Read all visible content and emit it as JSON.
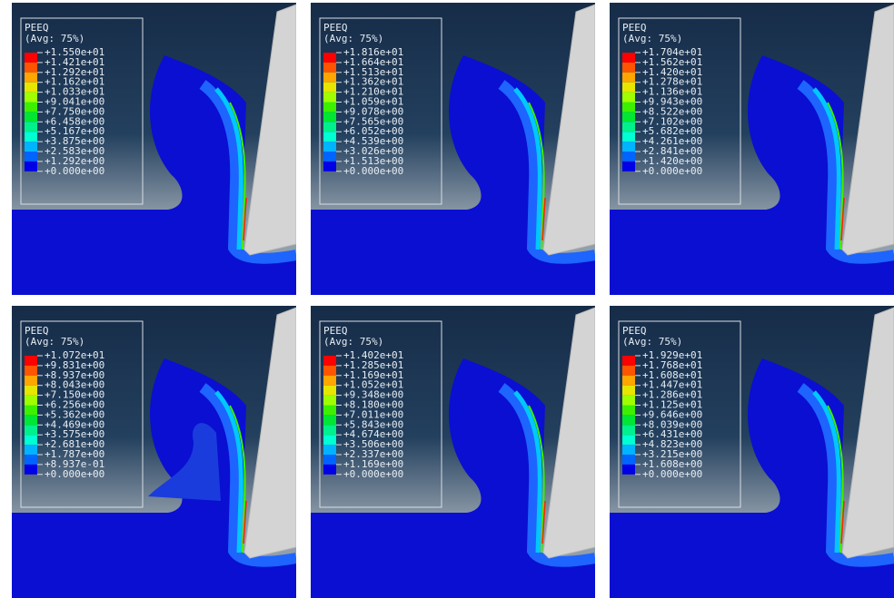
{
  "panels": [
    {
      "title": "PEEQ",
      "average": "(Avg: 75%)",
      "labels": [
        "+1.550e+01",
        "+1.421e+01",
        "+1.292e+01",
        "+1.162e+01",
        "+1.033e+01",
        "+9.041e+00",
        "+7.750e+00",
        "+6.458e+00",
        "+5.167e+00",
        "+3.875e+00",
        "+2.583e+00",
        "+1.292e+00",
        "+0.000e+00"
      ]
    },
    {
      "title": "PEEQ",
      "average": "(Avg: 75%)",
      "labels": [
        "+1.816e+01",
        "+1.664e+01",
        "+1.513e+01",
        "+1.362e+01",
        "+1.210e+01",
        "+1.059e+01",
        "+9.078e+00",
        "+7.565e+00",
        "+6.052e+00",
        "+4.539e+00",
        "+3.026e+00",
        "+1.513e+00",
        "+0.000e+00"
      ]
    },
    {
      "title": "PEEQ",
      "average": "(Avg: 75%)",
      "labels": [
        "+1.704e+01",
        "+1.562e+01",
        "+1.420e+01",
        "+1.278e+01",
        "+1.136e+01",
        "+9.943e+00",
        "+8.522e+00",
        "+7.102e+00",
        "+5.682e+00",
        "+4.261e+00",
        "+2.841e+00",
        "+1.420e+00",
        "+0.000e+00"
      ]
    },
    {
      "title": "PEEQ",
      "average": "(Avg: 75%)",
      "labels": [
        "+1.072e+01",
        "+9.831e+00",
        "+8.937e+00",
        "+8.043e+00",
        "+7.150e+00",
        "+6.256e+00",
        "+5.362e+00",
        "+4.469e+00",
        "+3.575e+00",
        "+2.681e+00",
        "+1.787e+00",
        "+8.937e-01",
        "+0.000e+00"
      ]
    },
    {
      "title": "PEEQ",
      "average": "(Avg: 75%)",
      "labels": [
        "+1.402e+01",
        "+1.285e+01",
        "+1.169e+01",
        "+1.052e+01",
        "+9.348e+00",
        "+8.180e+00",
        "+7.011e+00",
        "+5.843e+00",
        "+4.674e+00",
        "+3.506e+00",
        "+2.337e+00",
        "+1.169e+00",
        "+0.000e+00"
      ]
    },
    {
      "title": "PEEQ",
      "average": "(Avg: 75%)",
      "labels": [
        "+1.929e+01",
        "+1.768e+01",
        "+1.608e+01",
        "+1.447e+01",
        "+1.286e+01",
        "+1.125e+01",
        "+9.646e+00",
        "+8.039e+00",
        "+6.431e+00",
        "+4.823e+00",
        "+3.215e+00",
        "+1.608e+00",
        "+0.000e+00"
      ]
    }
  ]
}
